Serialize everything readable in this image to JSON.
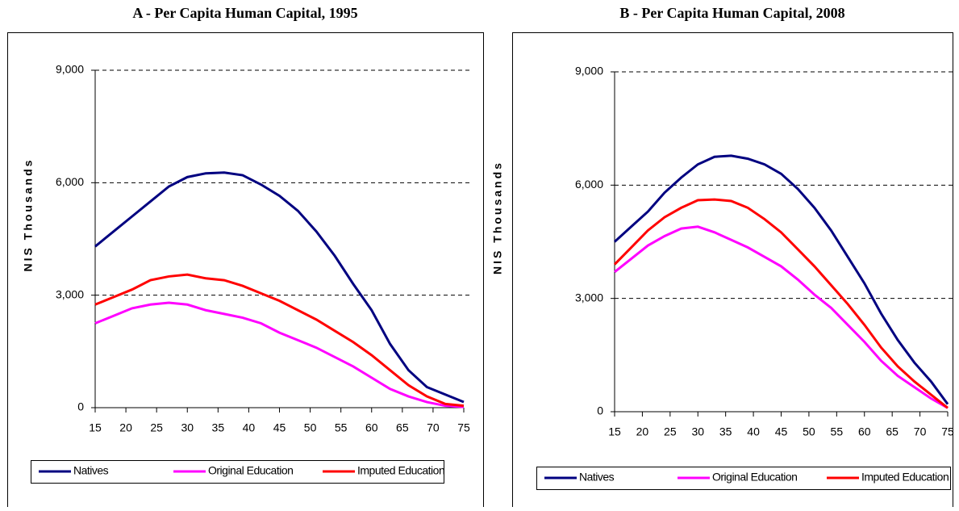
{
  "chart_data": [
    {
      "type": "line",
      "title": "A - Per Capita Human Capital, 1995",
      "y_label": "NIS Thousands",
      "x": [
        15,
        18,
        21,
        24,
        27,
        30,
        33,
        36,
        39,
        42,
        45,
        48,
        51,
        54,
        57,
        60,
        63,
        66,
        69,
        72,
        75
      ],
      "series": [
        {
          "name": "Natives",
          "color": "#000080",
          "values": [
            4300,
            4700,
            5100,
            5500,
            5900,
            6150,
            6250,
            6270,
            6200,
            5950,
            5650,
            5250,
            4700,
            4050,
            3300,
            2600,
            1700,
            1000,
            550,
            350,
            150
          ]
        },
        {
          "name": "Original Education",
          "color": "#ff00ff",
          "values": [
            2250,
            2450,
            2650,
            2750,
            2800,
            2750,
            2600,
            2500,
            2400,
            2250,
            2000,
            1800,
            1600,
            1350,
            1100,
            800,
            500,
            300,
            150,
            50,
            20
          ]
        },
        {
          "name": "Imputed Education",
          "color": "#ff0000",
          "values": [
            2750,
            2950,
            3150,
            3400,
            3500,
            3550,
            3450,
            3400,
            3250,
            3050,
            2850,
            2600,
            2350,
            2050,
            1750,
            1400,
            1000,
            600,
            300,
            100,
            50
          ]
        }
      ],
      "xlim": [
        15,
        75
      ],
      "ylim": [
        0,
        9000
      ],
      "xticks": [
        15,
        20,
        25,
        30,
        35,
        40,
        45,
        50,
        55,
        60,
        65,
        70,
        75
      ],
      "yticks": [
        0,
        {
          "value": 3000,
          "label": "3,000"
        },
        {
          "value": 6000,
          "label": "6,000"
        },
        {
          "value": 9000,
          "label": "9,000"
        }
      ],
      "grid": true,
      "legend": "bottom"
    },
    {
      "type": "line",
      "title": "B - Per Capita Human Capital, 2008",
      "y_label": "NIS Thousands",
      "x": [
        15,
        18,
        21,
        24,
        27,
        30,
        33,
        36,
        39,
        42,
        45,
        48,
        51,
        54,
        57,
        60,
        63,
        66,
        69,
        72,
        75
      ],
      "series": [
        {
          "name": "Natives",
          "color": "#000080",
          "values": [
            4500,
            4900,
            5300,
            5800,
            6200,
            6550,
            6750,
            6780,
            6700,
            6550,
            6300,
            5900,
            5400,
            4800,
            4100,
            3400,
            2600,
            1900,
            1300,
            800,
            200
          ]
        },
        {
          "name": "Original Education",
          "color": "#ff00ff",
          "values": [
            3700,
            4050,
            4400,
            4650,
            4850,
            4900,
            4750,
            4550,
            4350,
            4100,
            3850,
            3500,
            3100,
            2750,
            2300,
            1850,
            1350,
            950,
            650,
            350,
            100
          ]
        },
        {
          "name": "Imputed Education",
          "color": "#ff0000",
          "values": [
            3900,
            4350,
            4800,
            5150,
            5400,
            5600,
            5620,
            5580,
            5400,
            5100,
            4750,
            4300,
            3850,
            3350,
            2850,
            2300,
            1700,
            1200,
            800,
            450,
            100
          ]
        }
      ],
      "xlim": [
        15,
        75
      ],
      "ylim": [
        0,
        9000
      ],
      "xticks": [
        15,
        20,
        25,
        30,
        35,
        40,
        45,
        50,
        55,
        60,
        65,
        70,
        75
      ],
      "yticks": [
        0,
        {
          "value": 3000,
          "label": "3,000"
        },
        {
          "value": 6000,
          "label": "6,000"
        },
        {
          "value": 9000,
          "label": "9,000"
        }
      ],
      "grid": true,
      "legend": "bottom"
    }
  ]
}
